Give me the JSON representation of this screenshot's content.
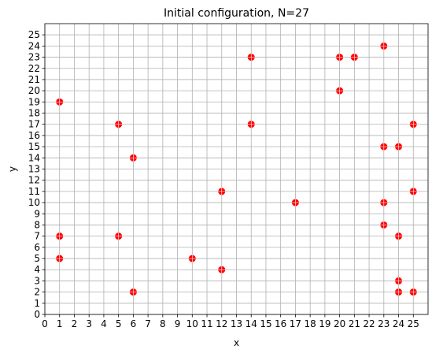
{
  "chart_data": {
    "type": "scatter",
    "title": "Initial configuration, N=27",
    "xlabel": "x",
    "ylabel": "y",
    "xlim": [
      0,
      26
    ],
    "ylim": [
      0,
      26
    ],
    "x_ticks": [
      0,
      1,
      2,
      3,
      4,
      5,
      6,
      7,
      8,
      9,
      10,
      11,
      12,
      13,
      14,
      15,
      16,
      17,
      18,
      19,
      20,
      21,
      22,
      23,
      24,
      25
    ],
    "y_ticks": [
      0,
      1,
      2,
      3,
      4,
      5,
      6,
      7,
      8,
      9,
      10,
      11,
      12,
      13,
      14,
      15,
      16,
      17,
      18,
      19,
      20,
      21,
      22,
      23,
      24,
      25
    ],
    "grid": true,
    "marker_color": "#ff0000",
    "points": [
      {
        "x": 1,
        "y": 19
      },
      {
        "x": 1,
        "y": 7
      },
      {
        "x": 1,
        "y": 5
      },
      {
        "x": 5,
        "y": 17
      },
      {
        "x": 5,
        "y": 7
      },
      {
        "x": 6,
        "y": 14
      },
      {
        "x": 6,
        "y": 2
      },
      {
        "x": 10,
        "y": 5
      },
      {
        "x": 12,
        "y": 11
      },
      {
        "x": 12,
        "y": 4
      },
      {
        "x": 14,
        "y": 23
      },
      {
        "x": 14,
        "y": 17
      },
      {
        "x": 17,
        "y": 10
      },
      {
        "x": 20,
        "y": 23
      },
      {
        "x": 20,
        "y": 20
      },
      {
        "x": 21,
        "y": 23
      },
      {
        "x": 23,
        "y": 24
      },
      {
        "x": 23,
        "y": 15
      },
      {
        "x": 23,
        "y": 10
      },
      {
        "x": 23,
        "y": 8
      },
      {
        "x": 24,
        "y": 15
      },
      {
        "x": 24,
        "y": 7
      },
      {
        "x": 24,
        "y": 3
      },
      {
        "x": 24,
        "y": 2
      },
      {
        "x": 25,
        "y": 17
      },
      {
        "x": 25,
        "y": 11
      },
      {
        "x": 25,
        "y": 2
      }
    ]
  }
}
